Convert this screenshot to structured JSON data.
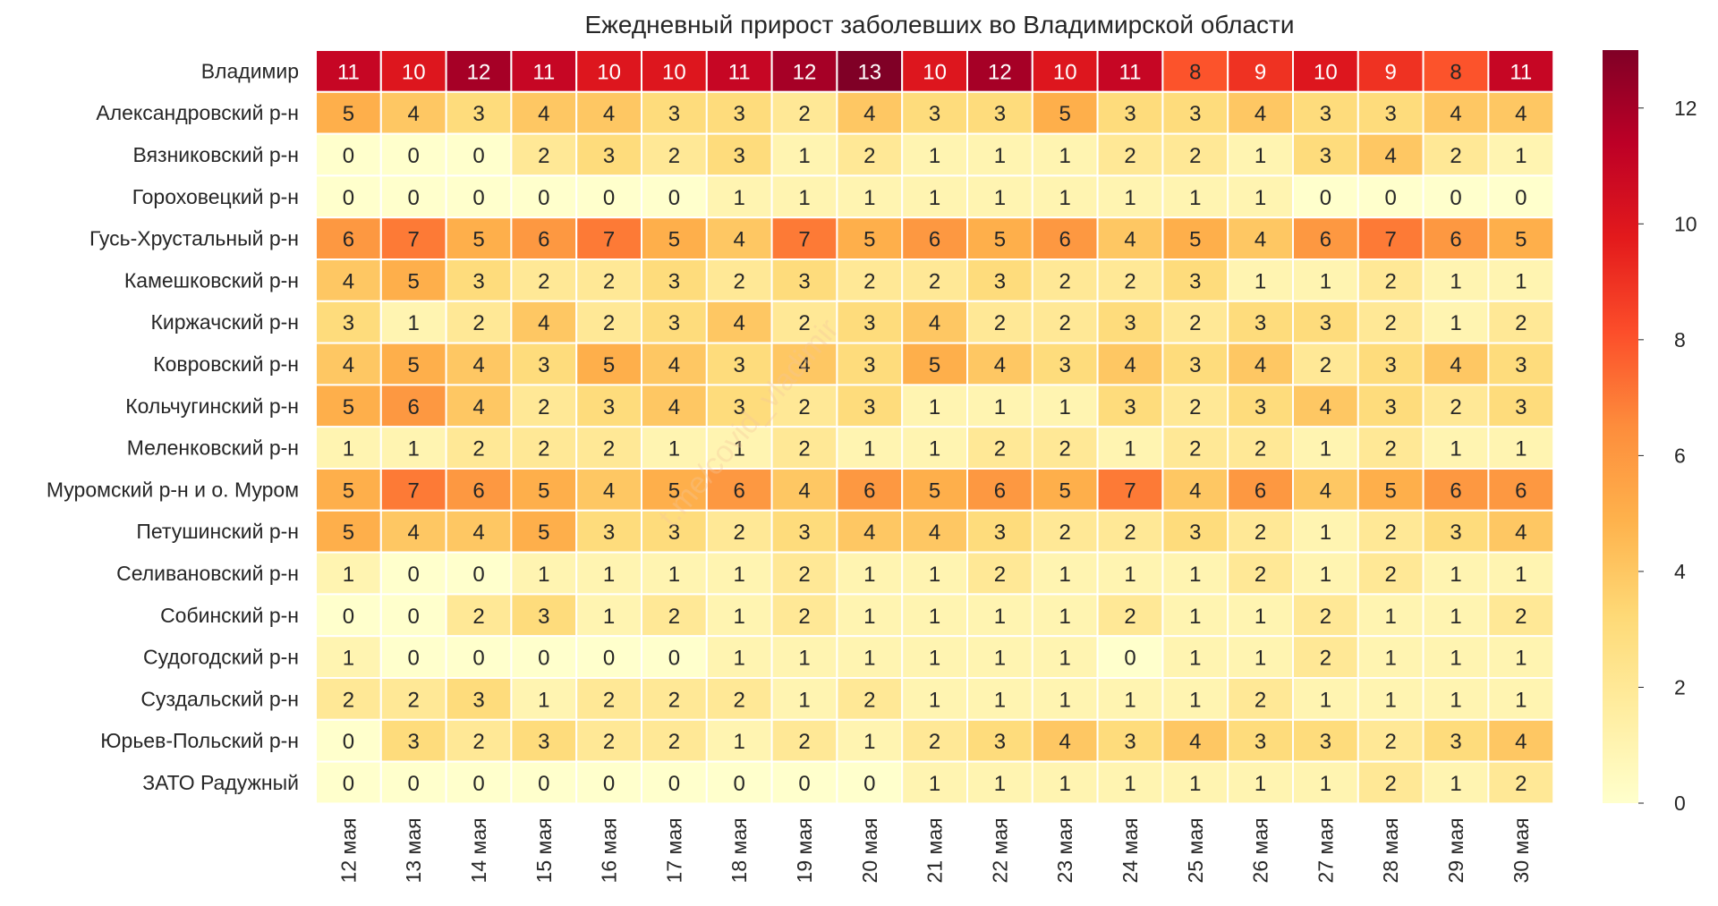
{
  "chart_data": {
    "type": "heatmap",
    "title": "Ежедневный прирост заболевших во Владимирской области",
    "xlabel": "",
    "ylabel": "",
    "columns": [
      "12 мая",
      "13 мая",
      "14 мая",
      "15 мая",
      "16 мая",
      "17 мая",
      "18 мая",
      "19 мая",
      "20 мая",
      "21 мая",
      "22 мая",
      "23 мая",
      "24 мая",
      "25 мая",
      "26 мая",
      "27 мая",
      "28 мая",
      "29 мая",
      "30 мая"
    ],
    "rows": [
      "Владимир",
      "Александровский р-н",
      "Вязниковский р-н",
      "Гороховецкий р-н",
      "Гусь-Хрустальный р-н",
      "Камешковский р-н",
      "Киржачский р-н",
      "Ковровский р-н",
      "Кольчугинский р-н",
      "Меленковский р-н",
      "Муромский р-н и о. Муром",
      "Петушинский р-н",
      "Селивановский р-н",
      "Собинский р-н",
      "Судогодский р-н",
      "Суздальский р-н",
      "Юрьев-Польский р-н",
      "ЗАТО Радужный"
    ],
    "values": [
      [
        11,
        10,
        12,
        11,
        10,
        10,
        11,
        12,
        13,
        10,
        12,
        10,
        11,
        8,
        9,
        10,
        9,
        8,
        11
      ],
      [
        5,
        4,
        3,
        4,
        4,
        3,
        3,
        2,
        4,
        3,
        3,
        5,
        3,
        3,
        4,
        3,
        3,
        4,
        4
      ],
      [
        0,
        0,
        0,
        2,
        3,
        2,
        3,
        1,
        2,
        1,
        1,
        1,
        2,
        2,
        1,
        3,
        4,
        2,
        1
      ],
      [
        0,
        0,
        0,
        0,
        0,
        0,
        1,
        1,
        1,
        1,
        1,
        1,
        1,
        1,
        1,
        0,
        0,
        0,
        0
      ],
      [
        6,
        7,
        5,
        6,
        7,
        5,
        4,
        7,
        5,
        6,
        5,
        6,
        4,
        5,
        4,
        6,
        7,
        6,
        5
      ],
      [
        4,
        5,
        3,
        2,
        2,
        3,
        2,
        3,
        2,
        2,
        3,
        2,
        2,
        3,
        1,
        1,
        2,
        1,
        1
      ],
      [
        3,
        1,
        2,
        4,
        2,
        3,
        4,
        2,
        3,
        4,
        2,
        2,
        3,
        2,
        3,
        3,
        2,
        1,
        2
      ],
      [
        4,
        5,
        4,
        3,
        5,
        4,
        3,
        4,
        3,
        5,
        4,
        3,
        4,
        3,
        4,
        2,
        3,
        4,
        3
      ],
      [
        5,
        6,
        4,
        2,
        3,
        4,
        3,
        2,
        3,
        1,
        1,
        1,
        3,
        2,
        3,
        4,
        3,
        2,
        3
      ],
      [
        1,
        1,
        2,
        2,
        2,
        1,
        1,
        2,
        1,
        1,
        2,
        2,
        1,
        2,
        2,
        1,
        2,
        1,
        1
      ],
      [
        5,
        7,
        6,
        5,
        4,
        5,
        6,
        4,
        6,
        5,
        6,
        5,
        7,
        4,
        6,
        4,
        5,
        6,
        6
      ],
      [
        5,
        4,
        4,
        5,
        3,
        3,
        2,
        3,
        4,
        4,
        3,
        2,
        2,
        3,
        2,
        1,
        2,
        3,
        4
      ],
      [
        1,
        0,
        0,
        1,
        1,
        1,
        1,
        2,
        1,
        1,
        2,
        1,
        1,
        1,
        2,
        1,
        2,
        1,
        1
      ],
      [
        0,
        0,
        2,
        3,
        1,
        2,
        1,
        2,
        1,
        1,
        1,
        1,
        2,
        1,
        1,
        2,
        1,
        1,
        2
      ],
      [
        1,
        0,
        0,
        0,
        0,
        0,
        1,
        1,
        1,
        1,
        1,
        1,
        0,
        1,
        1,
        2,
        1,
        1,
        1
      ],
      [
        2,
        2,
        3,
        1,
        2,
        2,
        2,
        1,
        2,
        1,
        1,
        1,
        1,
        1,
        2,
        1,
        1,
        1,
        1
      ],
      [
        0,
        3,
        2,
        3,
        2,
        2,
        1,
        2,
        1,
        2,
        3,
        4,
        3,
        4,
        3,
        3,
        2,
        3,
        4
      ],
      [
        0,
        0,
        0,
        0,
        0,
        0,
        0,
        0,
        0,
        1,
        1,
        1,
        1,
        1,
        1,
        1,
        2,
        1,
        2
      ]
    ],
    "color_range": [
      0,
      13
    ],
    "colormap": "YlOrRd",
    "colormap_stops": [
      "#ffffcc",
      "#ffeda0",
      "#fed976",
      "#feb24c",
      "#fd8d3c",
      "#fc4e2a",
      "#e31a1c",
      "#bd0026",
      "#800026"
    ],
    "colorbar_ticks": [
      0,
      2,
      4,
      6,
      8,
      10,
      12
    ],
    "legend": "colorbar right",
    "annotations": "cell values shown"
  },
  "watermark": "t.me/covid_vladimir"
}
